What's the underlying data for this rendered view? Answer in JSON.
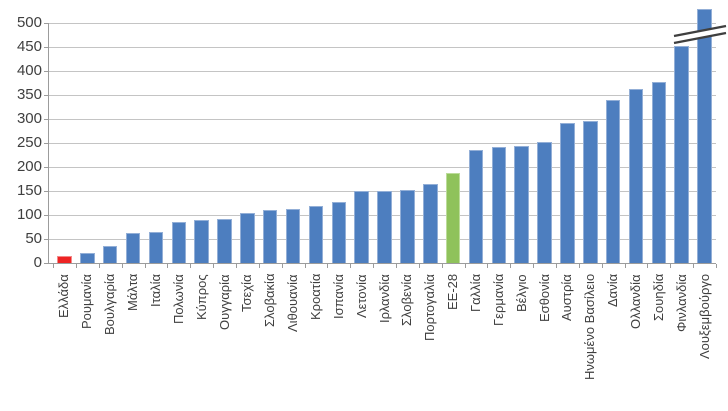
{
  "chart_data": {
    "type": "bar",
    "title": "",
    "xlabel": "",
    "ylabel": "",
    "categories": [
      "Ελλάδα",
      "Ρουμανία",
      "Βουλγαρία",
      "Μάλτα",
      "Ιταλία",
      "Πολωνία",
      "Κύπρος",
      "Ουγγαρία",
      "Τσεχία",
      "Σλοβακία",
      "Λιθουανία",
      "Κροατία",
      "Ισπανία",
      "Λετονία",
      "Ιρλανδία",
      "Σλοβενία",
      "Πορτογαλία",
      "ΕΕ-28",
      "Γαλλία",
      "Γερμανία",
      "Βέλγιο",
      "Εσθονία",
      "Αυστρία",
      "Ηνωμένο Βασίλειο",
      "Δανία",
      "Ολλανδία",
      "Σουηδία",
      "Φινλανδία",
      "Λουξεμβούργο"
    ],
    "values": [
      15,
      20,
      35,
      63,
      65,
      85,
      90,
      92,
      105,
      110,
      113,
      118,
      127,
      149,
      151,
      153,
      165,
      188,
      236,
      241,
      243,
      253,
      292,
      296,
      340,
      362,
      377,
      453,
      530
    ],
    "ylim": [
      0,
      500
    ],
    "ytick_step": 50,
    "grid": true,
    "legend": null,
    "bar_colors": {
      "default": "#4d7ebf",
      "highlight_red": "#ee2424",
      "highlight_green": "#8fc25b"
    },
    "highlight": {
      "red_index": 0,
      "green_index": 17
    },
    "axis_break": {
      "category": "Λουξεμβούργο",
      "note": "bar clipped at axis maximum with break marks"
    }
  }
}
